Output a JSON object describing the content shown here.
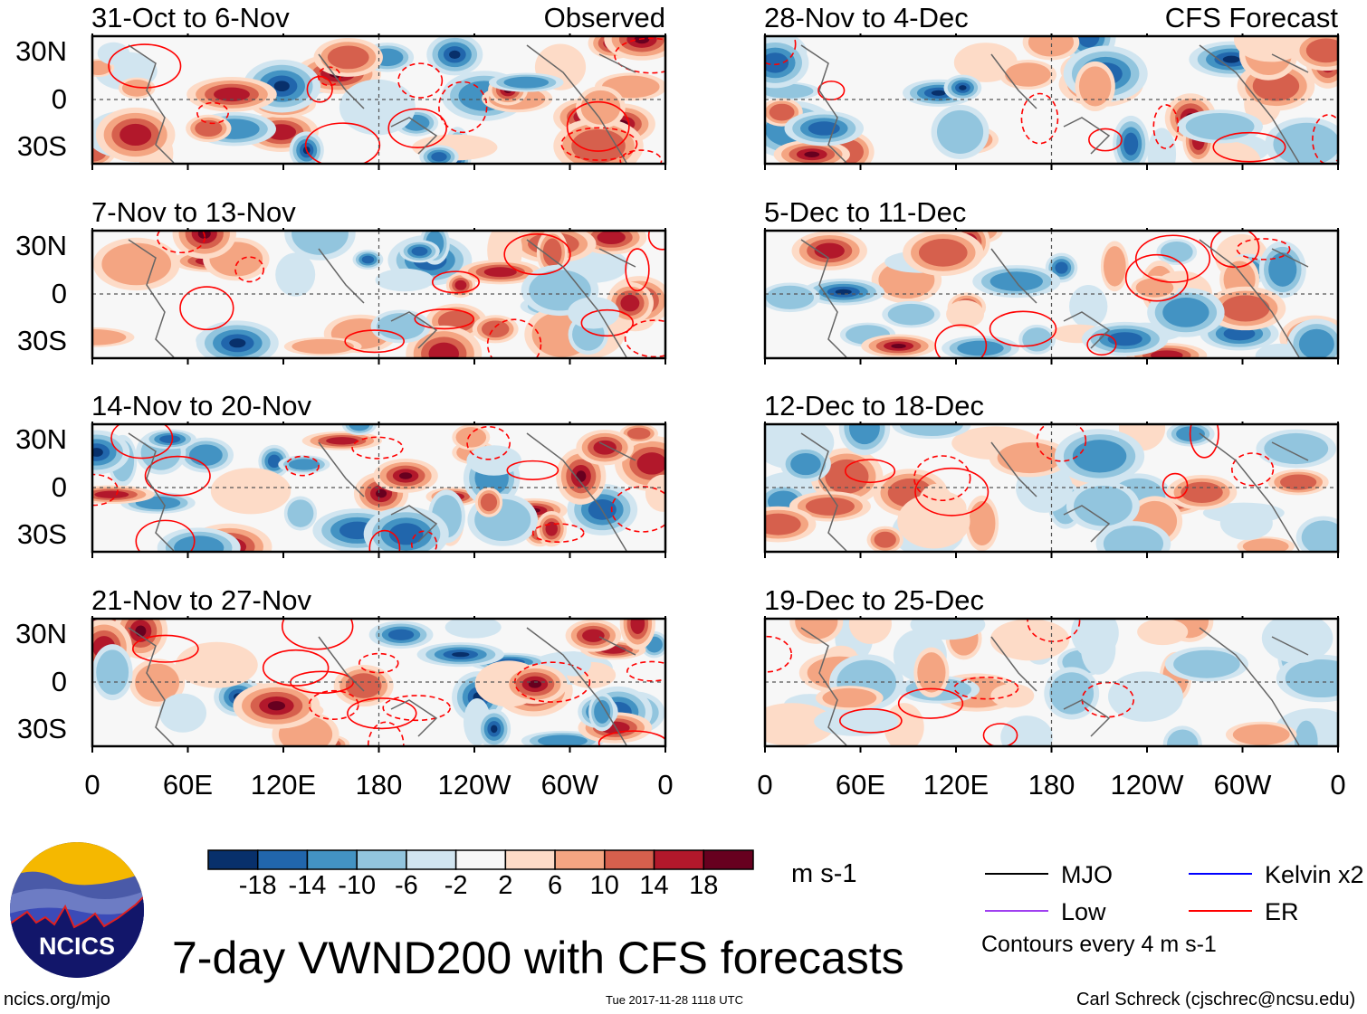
{
  "chart_data": {
    "type": "heatmap",
    "title": "7-day VWND200 with CFS forecasts",
    "units": "m s-1",
    "lat_ticks": [
      "30N",
      "0",
      "30S"
    ],
    "lon_ticks": [
      "0",
      "60E",
      "120E",
      "180",
      "120W",
      "60W",
      "0"
    ],
    "columns": [
      {
        "label": "Observed",
        "panels": [
          "31-Oct to 6-Nov",
          "7-Nov to 13-Nov",
          "14-Nov to 20-Nov",
          "21-Nov to 27-Nov"
        ]
      },
      {
        "label": "CFS Forecast",
        "panels": [
          "28-Nov to 4-Dec",
          "5-Dec to 11-Dec",
          "12-Dec to 18-Dec",
          "19-Dec to 25-Dec"
        ]
      }
    ],
    "colorbar": {
      "levels": [
        "-18",
        "-14",
        "-10",
        "-6",
        "-2",
        "2",
        "6",
        "10",
        "14",
        "18"
      ],
      "colors": [
        "#08306b",
        "#2166ac",
        "#4393c3",
        "#92c5de",
        "#d1e5f0",
        "#f7f7f7",
        "#fddbc7",
        "#f4a582",
        "#d6604d",
        "#b2182b",
        "#67001f"
      ]
    },
    "legend": [
      {
        "label": "MJO",
        "color": "#000000"
      },
      {
        "label": "Kelvin x2",
        "color": "#0000ff"
      },
      {
        "label": "Low",
        "color": "#a040f0"
      },
      {
        "label": "ER",
        "color": "#ff0000"
      }
    ],
    "contour_note": "Contours every 4 m s-1"
  },
  "footer": {
    "site": "ncics.org/mjo",
    "timestamp": "Tue 2017-11-28 1118 UTC",
    "author": "Carl Schreck (cjschrec@ncsu.edu)",
    "logo_text": "NCICS"
  }
}
